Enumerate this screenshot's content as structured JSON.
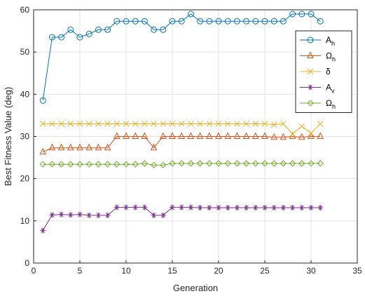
{
  "chart_data": {
    "type": "line",
    "title": "",
    "xlabel": "Generation",
    "ylabel": "Best Fitness Value (deg)",
    "xlim": [
      0,
      35
    ],
    "ylim": [
      0,
      60
    ],
    "xticks": [
      0,
      5,
      10,
      15,
      20,
      25,
      30,
      35
    ],
    "yticks": [
      0,
      10,
      20,
      30,
      40,
      50,
      60
    ],
    "grid": true,
    "legend_position": "top-right",
    "x": [
      1,
      2,
      3,
      4,
      5,
      6,
      7,
      8,
      9,
      10,
      11,
      12,
      13,
      14,
      15,
      16,
      17,
      18,
      19,
      20,
      21,
      22,
      23,
      24,
      25,
      26,
      27,
      28,
      29,
      30,
      31
    ],
    "series": [
      {
        "name": "A",
        "name_sub": "h",
        "color": "#0072BD",
        "marker": "circle",
        "values": [
          38.5,
          53.5,
          53.5,
          55.3,
          53.5,
          54.3,
          55.3,
          55.3,
          57.3,
          57.3,
          57.3,
          57.3,
          55.3,
          55.3,
          57.3,
          57.3,
          59.0,
          57.3,
          57.3,
          57.3,
          57.3,
          57.3,
          57.3,
          57.3,
          57.3,
          57.3,
          57.3,
          59.0,
          59.0,
          59.0,
          57.3
        ]
      },
      {
        "name": "Ω",
        "name_sub": "h",
        "color": "#D95319",
        "marker": "triangle",
        "values": [
          26.3,
          27.3,
          27.3,
          27.3,
          27.3,
          27.3,
          27.3,
          27.3,
          30.0,
          30.0,
          30.0,
          30.0,
          27.3,
          30.0,
          30.0,
          30.0,
          30.0,
          30.0,
          30.0,
          30.0,
          30.0,
          30.0,
          30.0,
          30.0,
          30.0,
          29.8,
          29.8,
          30.0,
          29.8,
          30.0,
          30.0
        ]
      },
      {
        "name": "δ",
        "name_sub": "",
        "color": "#EDB120",
        "marker": "x",
        "values": [
          33.0,
          33.0,
          33.0,
          33.0,
          33.0,
          33.0,
          33.0,
          33.0,
          33.0,
          33.0,
          33.0,
          33.0,
          33.0,
          33.0,
          33.0,
          33.0,
          33.0,
          33.0,
          33.0,
          33.0,
          33.0,
          33.0,
          33.0,
          33.0,
          33.0,
          32.8,
          33.0,
          30.6,
          32.4,
          30.8,
          33.0
        ]
      },
      {
        "name": "A",
        "name_sub": "v",
        "color": "#7E2F8E",
        "marker": "asterisk",
        "values": [
          7.7,
          11.4,
          11.5,
          11.4,
          11.5,
          11.3,
          11.3,
          11.3,
          13.2,
          13.2,
          13.2,
          13.2,
          11.3,
          11.3,
          13.2,
          13.2,
          13.2,
          13.1,
          13.1,
          13.1,
          13.1,
          13.1,
          13.1,
          13.1,
          13.1,
          13.1,
          13.1,
          13.1,
          13.1,
          13.1,
          13.1
        ]
      },
      {
        "name": "Ω",
        "name_sub": "h",
        "color": "#77AC30",
        "marker": "diamond",
        "values": [
          23.4,
          23.4,
          23.4,
          23.4,
          23.4,
          23.4,
          23.4,
          23.4,
          23.4,
          23.4,
          23.4,
          23.6,
          23.2,
          23.2,
          23.6,
          23.6,
          23.6,
          23.6,
          23.6,
          23.6,
          23.6,
          23.6,
          23.6,
          23.6,
          23.6,
          23.6,
          23.6,
          23.6,
          23.6,
          23.6,
          23.6
        ]
      }
    ]
  }
}
